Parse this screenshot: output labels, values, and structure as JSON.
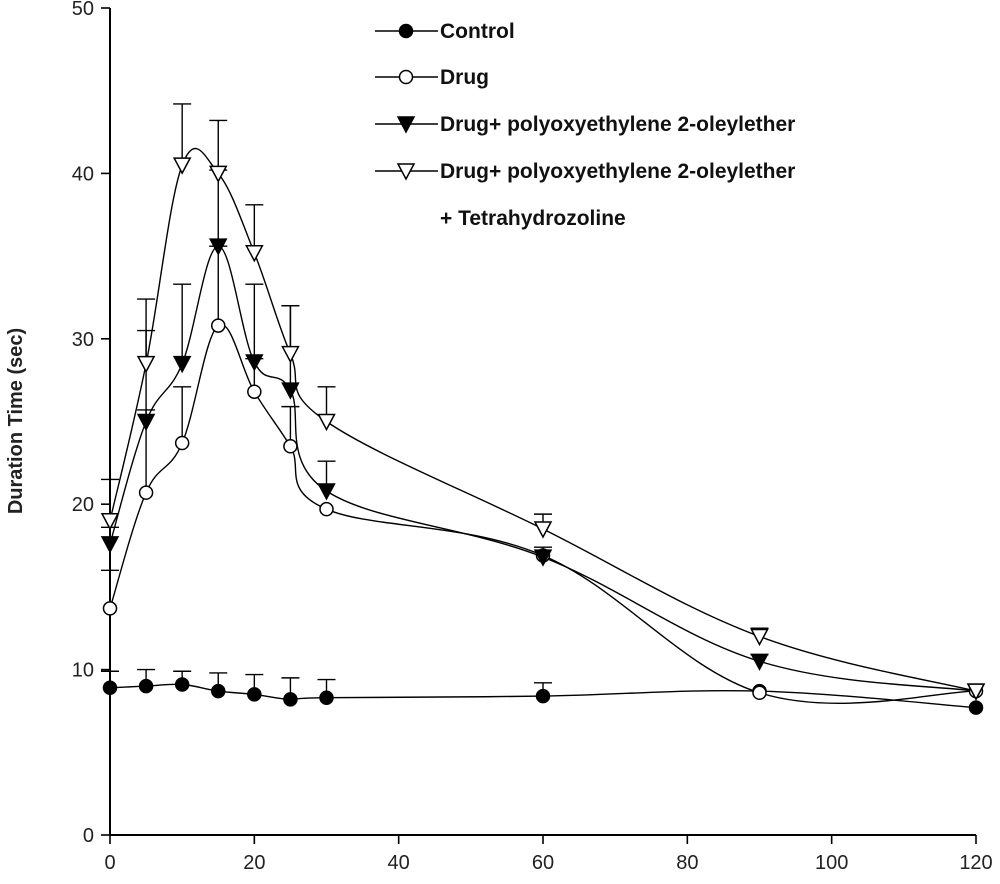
{
  "chart_data": {
    "type": "line",
    "title": "",
    "xlabel": "",
    "ylabel": "Duration Time (sec)",
    "xlim": [
      0,
      120
    ],
    "ylim": [
      0,
      50
    ],
    "x_ticks": [
      "0",
      "20",
      "40",
      "60",
      "80",
      "100",
      "120"
    ],
    "y_ticks": [
      "0",
      "10",
      "20",
      "30",
      "40",
      "50"
    ],
    "grid": false,
    "legend_position": "top-right",
    "x": [
      0,
      5,
      10,
      15,
      20,
      25,
      30,
      60,
      90,
      120
    ],
    "series": [
      {
        "name": "Control",
        "marker": "filled-circle",
        "values": [
          8.9,
          9.0,
          9.1,
          8.7,
          8.5,
          8.2,
          8.3,
          8.4,
          8.7,
          7.7
        ],
        "errors": [
          1.0,
          1.0,
          0.8,
          1.1,
          1.2,
          1.3,
          1.1,
          0.8,
          0,
          0
        ]
      },
      {
        "name": "Drug",
        "marker": "open-circle",
        "values": [
          13.7,
          20.7,
          23.7,
          30.8,
          26.8,
          23.5,
          19.7,
          16.9,
          8.6,
          8.7
        ],
        "errors": [
          2.3,
          5.0,
          3.4,
          4.8,
          2.0,
          2.4,
          0,
          0,
          0,
          0
        ]
      },
      {
        "name": "Drug+ polyoxyethylene 2-oleylether",
        "marker": "filled-triangle-down",
        "values": [
          17.6,
          25.0,
          28.5,
          35.6,
          28.6,
          26.9,
          20.8,
          16.8,
          10.5,
          8.7
        ],
        "errors": [
          1.0,
          5.5,
          4.8,
          4.6,
          4.7,
          5.1,
          1.8,
          0.6,
          0.4,
          0
        ]
      },
      {
        "name": "Drug+ polyoxyethylene 2-oleylether",
        "name_line2": "+ Tetrahydrozoline",
        "marker": "open-triangle-down",
        "values": [
          19.0,
          28.5,
          40.5,
          40.0,
          35.2,
          29.1,
          25.0,
          18.5,
          12.0,
          8.7
        ],
        "errors": [
          2.5,
          3.9,
          3.7,
          3.2,
          2.9,
          2.9,
          2.1,
          0.9,
          0.5,
          0
        ]
      }
    ]
  }
}
